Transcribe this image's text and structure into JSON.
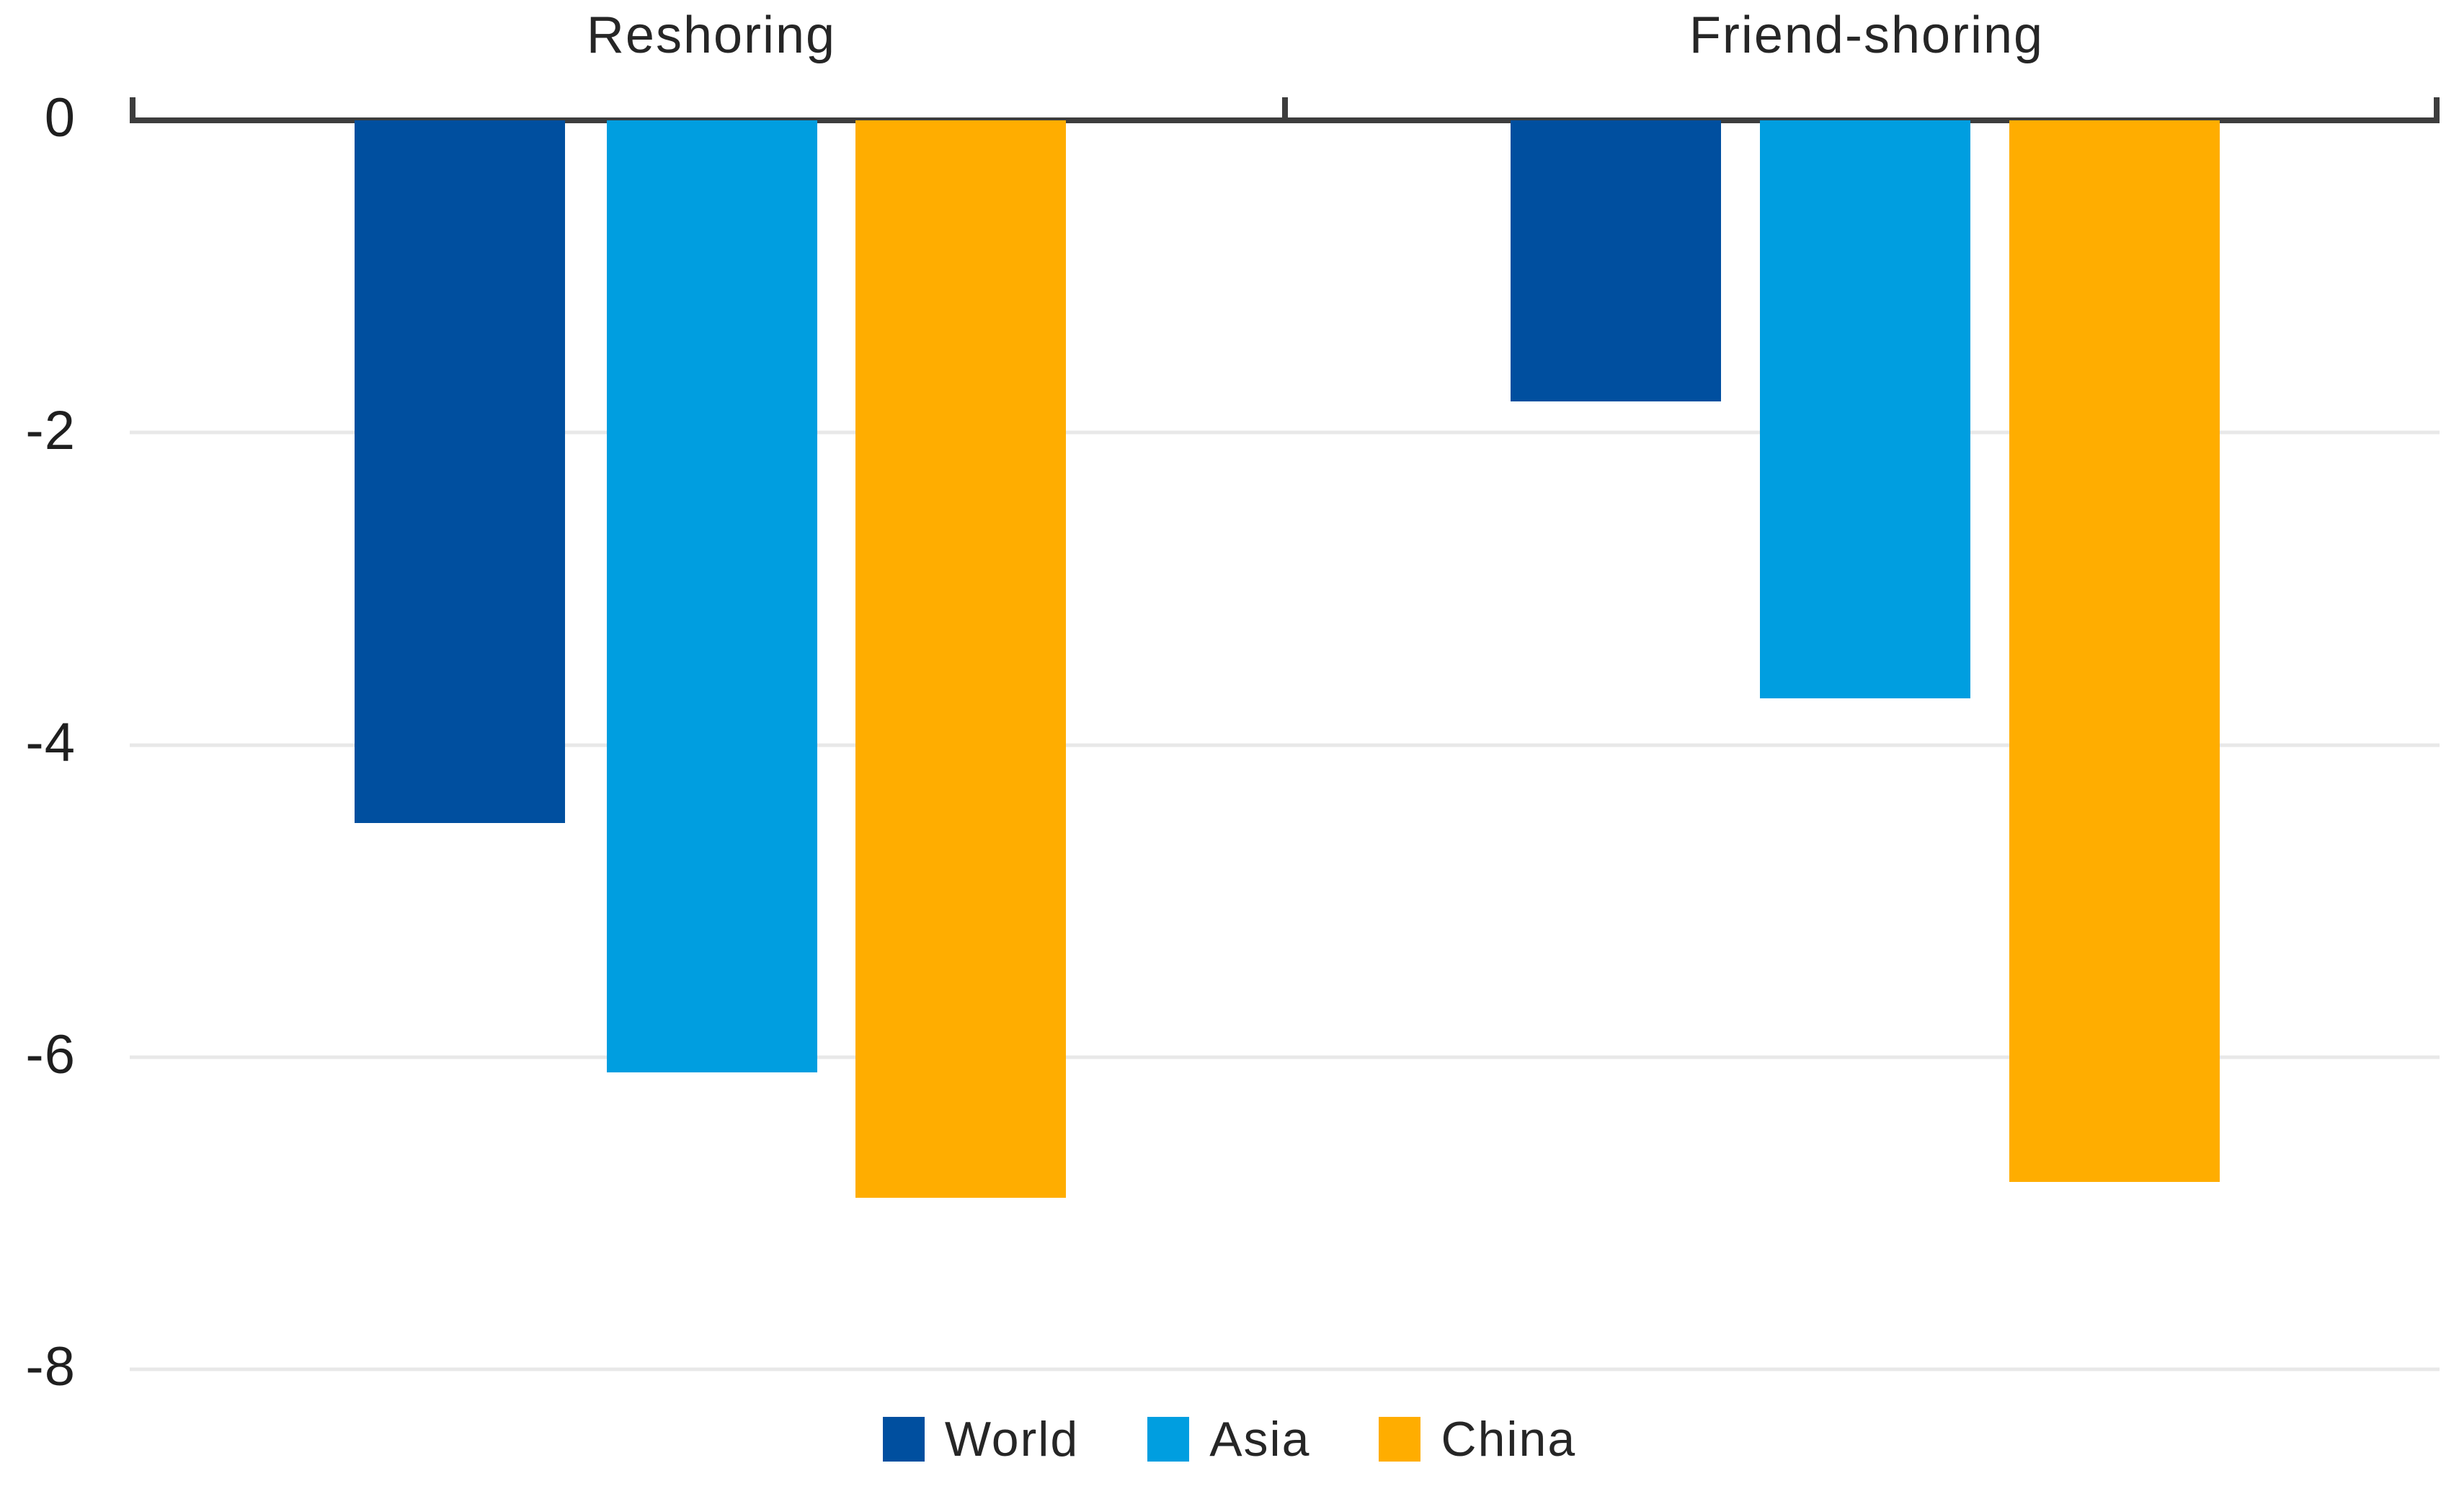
{
  "chart_data": {
    "type": "bar",
    "title": "",
    "categories": [
      "Reshoring",
      "Friend-shoring"
    ],
    "series": [
      {
        "name": "World",
        "color": "#004F9F",
        "values": [
          -4.5,
          -1.8
        ]
      },
      {
        "name": "Asia",
        "color": "#009EE0",
        "values": [
          -6.1,
          -3.7
        ]
      },
      {
        "name": "China",
        "color": "#FFAD00",
        "values": [
          -6.9,
          -6.8
        ]
      }
    ],
    "ylim": [
      -8,
      0
    ],
    "yticks": [
      "0",
      "-2",
      "-4",
      "-6",
      "-8"
    ],
    "grid": "horizontal gridlines at -2, -4, -6, -8",
    "legend_position": "bottom-center",
    "axis_color": "#3d3d3d",
    "gridline_color": "#e8e8e8",
    "background_color": "#ffffff"
  }
}
